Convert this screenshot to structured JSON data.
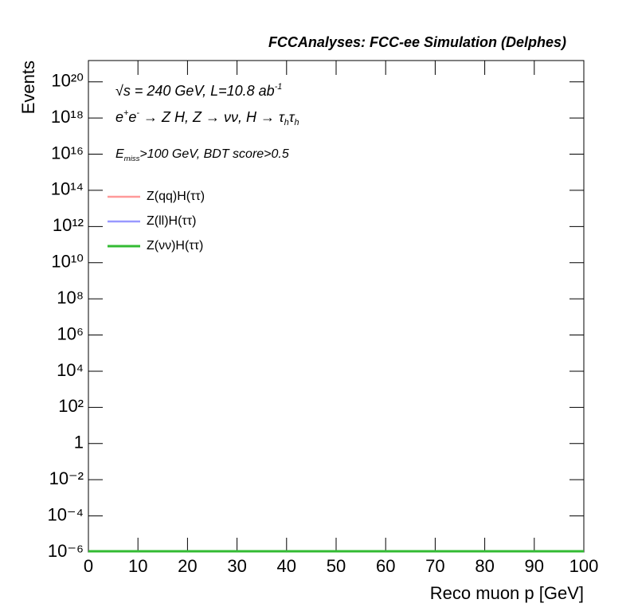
{
  "chart_data": {
    "type": "histogram",
    "title": "FCCAnalyses: FCC-ee Simulation (Delphes)",
    "x_label": "Reco muon p [GeV]",
    "y_label": "Events",
    "annotations": [
      [
        {
          "text": "√s = 240 GeV, L=10.8 ab"
        },
        {
          "text": "-1",
          "script": "sup"
        }
      ],
      [
        {
          "text": "e"
        },
        {
          "text": "+",
          "script": "sup"
        },
        {
          "text": "e"
        },
        {
          "text": "-",
          "script": "sup"
        },
        {
          "text": " → Z H, Z  → νν, H → τ"
        },
        {
          "text": "h",
          "script": "sub"
        },
        {
          "text": "τ"
        },
        {
          "text": "h",
          "script": "sub"
        }
      ],
      [
        {
          "text": "E"
        },
        {
          "text": "miss",
          "script": "sub"
        },
        {
          "text": ">100 GeV, BDT score>0.5"
        }
      ]
    ],
    "bins": [
      0,
      10,
      20,
      30,
      40,
      50,
      60,
      70,
      80,
      90,
      100
    ],
    "series": [
      {
        "name": "Z(qq)H(ττ)",
        "color": "#ff9999",
        "values": [
          1e-06,
          1e-06,
          1e-06,
          1e-06,
          1e-06,
          1e-06,
          1e-06,
          1e-06,
          1e-06,
          1e-06
        ]
      },
      {
        "name": "Z(ll)H(ττ)",
        "color": "#9999ff",
        "values": [
          1e-06,
          1e-06,
          1e-06,
          1e-06,
          1e-06,
          1e-06,
          1e-06,
          1e-06,
          1e-06,
          1e-06
        ]
      },
      {
        "name": "Z(νν)H(ττ)",
        "color": "#33bb33",
        "values": [
          1e-06,
          1e-06,
          1e-06,
          1e-06,
          1e-06,
          1e-06,
          1e-06,
          1e-06,
          1e-06,
          1e-06
        ]
      }
    ],
    "xlim": [
      0,
      100
    ],
    "xticks": [
      0,
      10,
      20,
      30,
      40,
      50,
      60,
      70,
      80,
      90,
      100
    ],
    "ylim": [
      1e-06,
      1.5e+21
    ],
    "log_y": true,
    "yticks": [
      {
        "value": 1e-06,
        "label": "10⁻⁶"
      },
      {
        "value": 0.0001,
        "label": "10⁻⁴"
      },
      {
        "value": 0.01,
        "label": "10⁻²"
      },
      1,
      {
        "value": 100,
        "label": "10²"
      },
      {
        "value": 10000.0,
        "label": "10⁴"
      },
      {
        "value": 1000000.0,
        "label": "10⁶"
      },
      {
        "value": 100000000.0,
        "label": "10⁸"
      },
      {
        "value": 10000000000.0,
        "label": "10¹⁰"
      },
      {
        "value": 1000000000000.0,
        "label": "10¹²"
      },
      {
        "value": 100000000000000.0,
        "label": "10¹⁴"
      },
      {
        "value": 1e+16,
        "label": "10¹⁶"
      },
      {
        "value": 1e+18,
        "label": "10¹⁸"
      },
      {
        "value": 1e+20,
        "label": "10²⁰"
      }
    ]
  }
}
